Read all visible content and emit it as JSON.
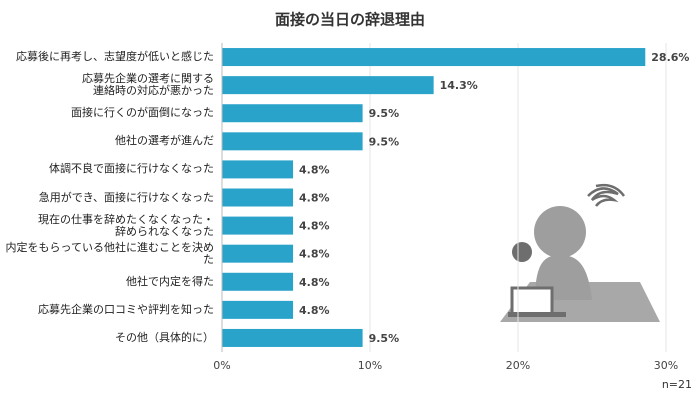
{
  "chart_data": {
    "type": "bar",
    "orientation": "horizontal",
    "title": "面接の当日の辞退理由",
    "categories": [
      "応募後に再考し、志望度が低いと感じた",
      "応募先企業の選考に関する\n連絡時の対応が悪かった",
      "面接に行くのが面倒になった",
      "他社の選考が進んだ",
      "体調不良で面接に行けなくなった",
      "急用ができ、面接に行けなくなった",
      "現在の仕事を辞めたくなくなった・\n辞められなくなった",
      "内定をもらっている他社に進むことを決めた",
      "他社で内定を得た",
      "応募先企業の口コミや評判を知った",
      "その他（具体的に）"
    ],
    "values": [
      28.6,
      14.3,
      9.5,
      9.5,
      4.8,
      4.8,
      4.8,
      4.8,
      4.8,
      4.8,
      9.5
    ],
    "value_labels": [
      "28.6%",
      "14.3%",
      "9.5%",
      "9.5%",
      "4.8%",
      "4.8%",
      "4.8%",
      "4.8%",
      "4.8%",
      "4.8%",
      "9.5%"
    ],
    "color": "#2aa3cb",
    "xlim": [
      0,
      30
    ],
    "xticks": [
      {
        "value": 0,
        "label": "0%"
      },
      {
        "value": 10,
        "label": "10%"
      },
      {
        "value": 20,
        "label": "20%"
      },
      {
        "value": 30,
        "label": "30%"
      }
    ],
    "grid": true,
    "note": "n=21"
  }
}
